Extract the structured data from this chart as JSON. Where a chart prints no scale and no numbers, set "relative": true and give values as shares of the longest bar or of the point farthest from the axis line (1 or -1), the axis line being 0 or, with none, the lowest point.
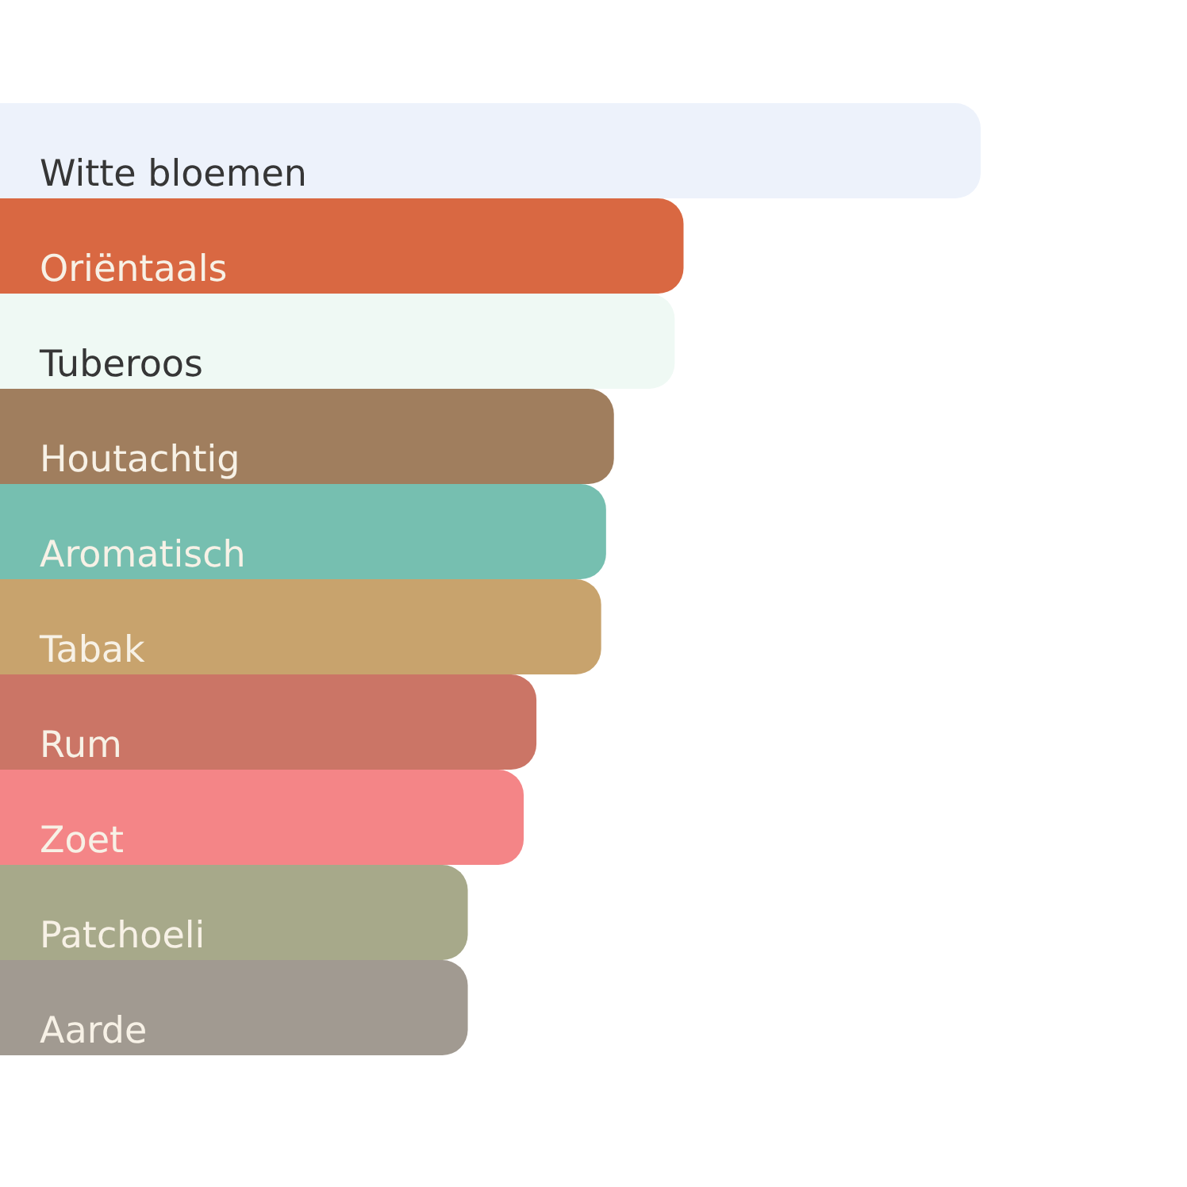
{
  "chart_data": {
    "type": "bar",
    "orientation": "horizontal",
    "relative": true,
    "categories": [
      "Witte bloemen",
      "Oriëntaals",
      "Tuberoos",
      "Houtachtig",
      "Aromatisch",
      "Tabak",
      "Rum",
      "Zoet",
      "Patchoeli",
      "Aarde"
    ],
    "values": [
      1,
      0.697,
      0.688,
      0.626,
      0.618,
      0.613,
      0.547,
      0.534,
      0.477,
      0.477
    ],
    "colors": [
      "#edf2fb",
      "#d96842",
      "#eff9f4",
      "#a07e5e",
      "#76bfb0",
      "#c8a36d",
      "#cb7566",
      "#f48587",
      "#a7a98a",
      "#a19a91"
    ]
  }
}
